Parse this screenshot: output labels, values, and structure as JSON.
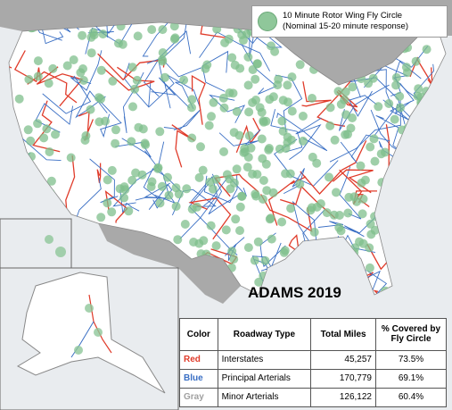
{
  "legend": {
    "line1": "10 Minute Rotor Wing Fly Circle",
    "line2": "(Nominal  15-20 minute response)"
  },
  "title": "ADAMS 2019",
  "table": {
    "header": [
      "Color",
      "Roadway Type",
      "Total Miles",
      "% Covered by Fly Circle"
    ],
    "rows": [
      [
        "Red",
        "Interstates",
        "45,257",
        "73.5%"
      ],
      [
        "Blue",
        "Principal Arterials",
        "170,779",
        "69.1%"
      ],
      [
        "Gray",
        "Minor Arterials",
        "126,122",
        "60.4%"
      ]
    ]
  }
}
